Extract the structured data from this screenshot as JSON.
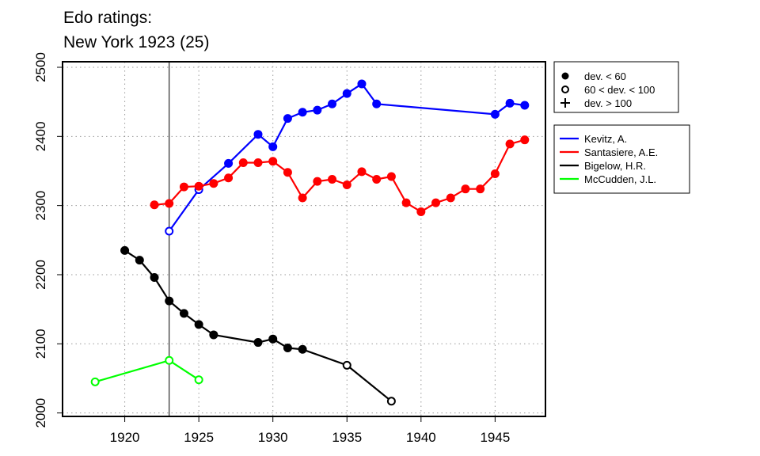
{
  "chart_data": {
    "type": "line",
    "title_lines": [
      "Edo ratings:",
      "New York 1923 (25)"
    ],
    "xlim": [
      1915.8,
      1948.4
    ],
    "ylim": [
      1995,
      2508
    ],
    "x_ticks": [
      1920,
      1925,
      1930,
      1935,
      1940,
      1945
    ],
    "y_ticks": [
      2000,
      2100,
      2200,
      2300,
      2400,
      2500
    ],
    "grid": true,
    "reference_line_x": 1923,
    "marker_legend": [
      {
        "symbol": "filled-circle",
        "label": "dev. < 60"
      },
      {
        "symbol": "open-circle",
        "label": "60 < dev. < 100"
      },
      {
        "symbol": "plus",
        "label": "dev. > 100"
      }
    ],
    "series": [
      {
        "name": "Kevitz, A.",
        "color": "#0000ff",
        "points": [
          {
            "x": 1923,
            "y": 2263,
            "marker": "open"
          },
          {
            "x": 1925,
            "y": 2323,
            "marker": "open"
          },
          {
            "x": 1927,
            "y": 2361,
            "marker": "filled"
          },
          {
            "x": 1929,
            "y": 2403,
            "marker": "filled"
          },
          {
            "x": 1930,
            "y": 2385,
            "marker": "filled"
          },
          {
            "x": 1931,
            "y": 2426,
            "marker": "filled"
          },
          {
            "x": 1932,
            "y": 2435,
            "marker": "filled"
          },
          {
            "x": 1933,
            "y": 2438,
            "marker": "filled"
          },
          {
            "x": 1934,
            "y": 2447,
            "marker": "filled"
          },
          {
            "x": 1935,
            "y": 2462,
            "marker": "filled"
          },
          {
            "x": 1936,
            "y": 2476,
            "marker": "filled"
          },
          {
            "x": 1937,
            "y": 2447,
            "marker": "filled"
          },
          {
            "x": 1945,
            "y": 2432,
            "marker": "filled"
          },
          {
            "x": 1946,
            "y": 2448,
            "marker": "filled"
          },
          {
            "x": 1947,
            "y": 2445,
            "marker": "filled"
          }
        ]
      },
      {
        "name": "Santasiere, A.E.",
        "color": "#ff0000",
        "points": [
          {
            "x": 1922,
            "y": 2301,
            "marker": "filled"
          },
          {
            "x": 1923,
            "y": 2303,
            "marker": "filled"
          },
          {
            "x": 1924,
            "y": 2327,
            "marker": "filled"
          },
          {
            "x": 1925,
            "y": 2328,
            "marker": "filled"
          },
          {
            "x": 1926,
            "y": 2332,
            "marker": "filled"
          },
          {
            "x": 1927,
            "y": 2340,
            "marker": "filled"
          },
          {
            "x": 1928,
            "y": 2362,
            "marker": "filled"
          },
          {
            "x": 1929,
            "y": 2362,
            "marker": "filled"
          },
          {
            "x": 1930,
            "y": 2364,
            "marker": "filled"
          },
          {
            "x": 1931,
            "y": 2348,
            "marker": "filled"
          },
          {
            "x": 1932,
            "y": 2311,
            "marker": "filled"
          },
          {
            "x": 1933,
            "y": 2335,
            "marker": "filled"
          },
          {
            "x": 1934,
            "y": 2338,
            "marker": "filled"
          },
          {
            "x": 1935,
            "y": 2330,
            "marker": "filled"
          },
          {
            "x": 1936,
            "y": 2349,
            "marker": "filled"
          },
          {
            "x": 1937,
            "y": 2338,
            "marker": "filled"
          },
          {
            "x": 1938,
            "y": 2342,
            "marker": "filled"
          },
          {
            "x": 1939,
            "y": 2304,
            "marker": "filled"
          },
          {
            "x": 1940,
            "y": 2291,
            "marker": "filled"
          },
          {
            "x": 1941,
            "y": 2304,
            "marker": "filled"
          },
          {
            "x": 1942,
            "y": 2311,
            "marker": "filled"
          },
          {
            "x": 1943,
            "y": 2324,
            "marker": "filled"
          },
          {
            "x": 1944,
            "y": 2324,
            "marker": "filled"
          },
          {
            "x": 1945,
            "y": 2346,
            "marker": "filled"
          },
          {
            "x": 1946,
            "y": 2389,
            "marker": "filled"
          },
          {
            "x": 1947,
            "y": 2395,
            "marker": "filled"
          }
        ]
      },
      {
        "name": "Bigelow, H.R.",
        "color": "#000000",
        "points": [
          {
            "x": 1920,
            "y": 2235,
            "marker": "filled"
          },
          {
            "x": 1921,
            "y": 2221,
            "marker": "filled"
          },
          {
            "x": 1922,
            "y": 2196,
            "marker": "filled"
          },
          {
            "x": 1923,
            "y": 2162,
            "marker": "filled"
          },
          {
            "x": 1924,
            "y": 2144,
            "marker": "filled"
          },
          {
            "x": 1925,
            "y": 2128,
            "marker": "filled"
          },
          {
            "x": 1926,
            "y": 2113,
            "marker": "filled"
          },
          {
            "x": 1929,
            "y": 2102,
            "marker": "filled"
          },
          {
            "x": 1930,
            "y": 2107,
            "marker": "filled"
          },
          {
            "x": 1931,
            "y": 2094,
            "marker": "filled"
          },
          {
            "x": 1932,
            "y": 2092,
            "marker": "filled"
          },
          {
            "x": 1935,
            "y": 2069,
            "marker": "open"
          },
          {
            "x": 1938,
            "y": 2017,
            "marker": "open"
          }
        ]
      },
      {
        "name": "McCudden, J.L.",
        "color": "#00ff00",
        "points": [
          {
            "x": 1918,
            "y": 2045,
            "marker": "open"
          },
          {
            "x": 1923,
            "y": 2076,
            "marker": "open"
          },
          {
            "x": 1925,
            "y": 2048,
            "marker": "open"
          }
        ]
      }
    ]
  }
}
